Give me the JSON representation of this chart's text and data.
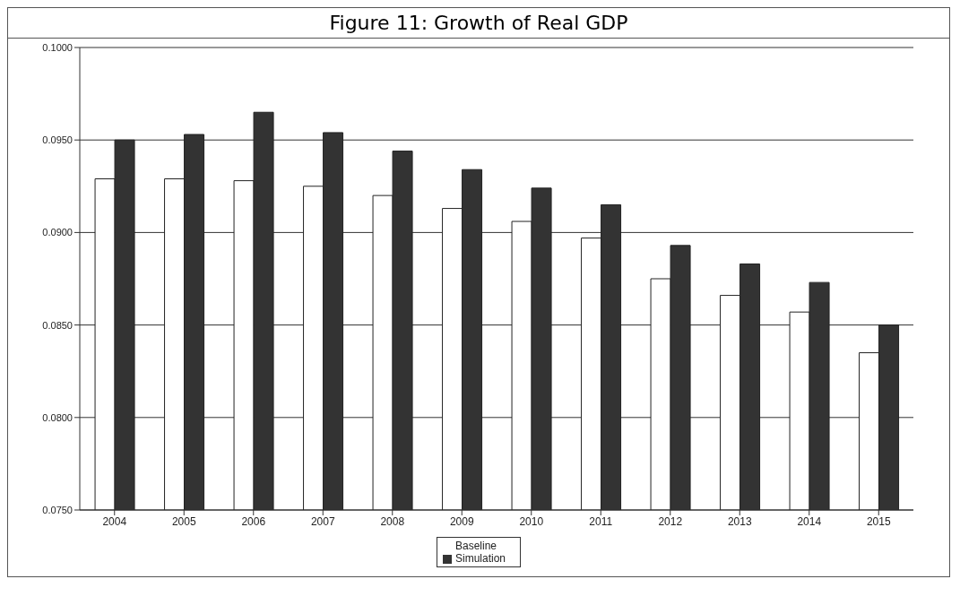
{
  "chart_data": {
    "type": "bar",
    "title": "Figure 11: Growth of Real GDP",
    "categories": [
      "2004",
      "2005",
      "2006",
      "2007",
      "2008",
      "2009",
      "2010",
      "2011",
      "2012",
      "2013",
      "2014",
      "2015"
    ],
    "series": [
      {
        "name": "Baseline",
        "color": "#ffffff",
        "values": [
          0.0929,
          0.0929,
          0.0928,
          0.0925,
          0.092,
          0.0913,
          0.0906,
          0.0897,
          0.0875,
          0.0866,
          0.0857,
          0.0835
        ]
      },
      {
        "name": "Simulation",
        "color": "#333333",
        "values": [
          0.095,
          0.0953,
          0.0965,
          0.0954,
          0.0944,
          0.0934,
          0.0924,
          0.0915,
          0.0893,
          0.0883,
          0.0873,
          0.085
        ]
      }
    ],
    "ylim": [
      0.075,
      0.1
    ],
    "yticks": [
      {
        "value": 0.075,
        "label": "0.0750"
      },
      {
        "value": 0.08,
        "label": "0.0800"
      },
      {
        "value": 0.085,
        "label": "0.0850"
      },
      {
        "value": 0.09,
        "label": "0.0900"
      },
      {
        "value": 0.095,
        "label": "0.0950"
      },
      {
        "value": 0.1,
        "label": "0.1000"
      }
    ],
    "grid": "y",
    "legend": "bottom"
  }
}
